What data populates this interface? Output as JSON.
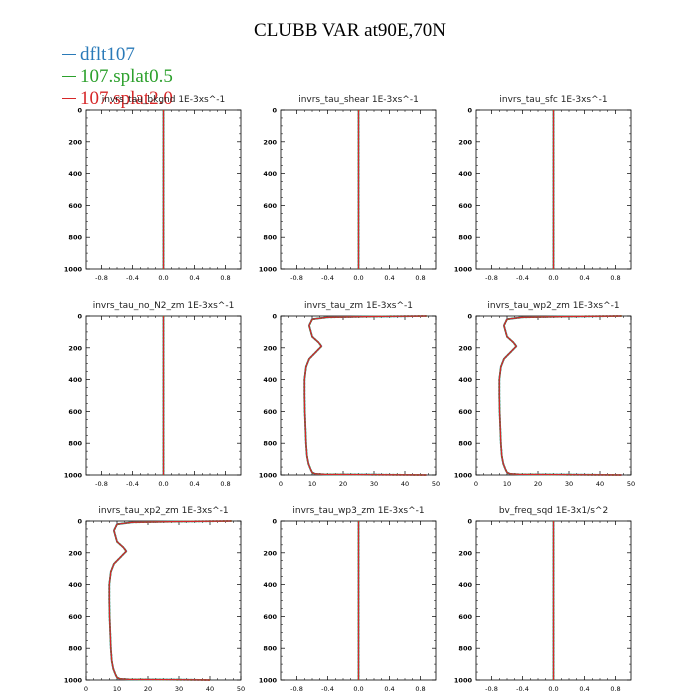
{
  "title": "CLUBB VAR at90E,70N",
  "legend": [
    {
      "label": "dflt107",
      "color": "#2a7ab8"
    },
    {
      "label": "107.splat0.5",
      "color": "#2ca02c"
    },
    {
      "label": "107.splat2.0",
      "color": "#d62728"
    }
  ],
  "chart_data": [
    {
      "type": "line",
      "title": "invrs_tau_bkgnd   1E-3xs^-1",
      "xlim": [
        -1,
        1
      ],
      "xticks": [
        "-0.8",
        "-0.4",
        "0.0",
        "0.4",
        "0.8"
      ],
      "ylim": [
        0,
        1000
      ],
      "yticks": [
        "0",
        "200",
        "400",
        "600",
        "800",
        "1000"
      ],
      "x": [
        0,
        0
      ],
      "y": [
        0,
        1000
      ]
    },
    {
      "type": "line",
      "title": "invrs_tau_shear   1E-3xs^-1",
      "xlim": [
        -1,
        1
      ],
      "xticks": [
        "-0.8",
        "-0.4",
        "0.0",
        "0.4",
        "0.8"
      ],
      "ylim": [
        0,
        1000
      ],
      "yticks": [
        "0",
        "200",
        "400",
        "600",
        "800",
        "1000"
      ],
      "x": [
        0,
        0
      ],
      "y": [
        0,
        1000
      ]
    },
    {
      "type": "line",
      "title": "invrs_tau_sfc   1E-3xs^-1",
      "xlim": [
        -1,
        1
      ],
      "xticks": [
        "-0.8",
        "-0.4",
        "0.0",
        "0.4",
        "0.8"
      ],
      "ylim": [
        0,
        1000
      ],
      "yticks": [
        "0",
        "200",
        "400",
        "600",
        "800",
        "1000"
      ],
      "x": [
        0,
        0
      ],
      "y": [
        0,
        1000
      ]
    },
    {
      "type": "line",
      "title": "invrs_tau_no_N2_zm   1E-3xs^-1",
      "xlim": [
        -1,
        1
      ],
      "xticks": [
        "-0.8",
        "-0.4",
        "0.0",
        "0.4",
        "0.8"
      ],
      "ylim": [
        0,
        1000
      ],
      "yticks": [
        "0",
        "200",
        "400",
        "600",
        "800",
        "1000"
      ],
      "x": [
        0,
        0
      ],
      "y": [
        0,
        1000
      ]
    },
    {
      "type": "line",
      "title": "invrs_tau_zm   1E-3xs^-1",
      "xlim": [
        0,
        50
      ],
      "xticks": [
        "0",
        "10",
        "20",
        "30",
        "40",
        "50"
      ],
      "ylim": [
        0,
        1000
      ],
      "yticks": [
        "0",
        "200",
        "400",
        "600",
        "800",
        "1000"
      ],
      "x": [
        47,
        30,
        15,
        10,
        9,
        10,
        12,
        13,
        11,
        9,
        8,
        7.5,
        7.5,
        7.6,
        7.8,
        8.0,
        8.3,
        8.8,
        9.5,
        10,
        11,
        14,
        30,
        47
      ],
      "y": [
        0,
        3,
        8,
        20,
        60,
        130,
        165,
        190,
        230,
        270,
        320,
        400,
        500,
        600,
        700,
        800,
        880,
        930,
        965,
        985,
        993,
        996,
        998,
        1000
      ]
    },
    {
      "type": "line",
      "title": "invrs_tau_wp2_zm   1E-3xs^-1",
      "xlim": [
        0,
        50
      ],
      "xticks": [
        "0",
        "10",
        "20",
        "30",
        "40",
        "50"
      ],
      "ylim": [
        0,
        1000
      ],
      "yticks": [
        "0",
        "200",
        "400",
        "600",
        "800",
        "1000"
      ],
      "x": [
        47,
        30,
        15,
        10,
        9,
        10,
        12,
        13,
        11,
        9,
        8,
        7.5,
        7.5,
        7.6,
        7.8,
        8.0,
        8.3,
        8.8,
        9.5,
        10,
        11,
        14,
        30,
        47
      ],
      "y": [
        0,
        3,
        8,
        20,
        60,
        130,
        165,
        190,
        230,
        270,
        320,
        400,
        500,
        600,
        700,
        800,
        880,
        930,
        965,
        985,
        993,
        996,
        998,
        1000
      ]
    },
    {
      "type": "line",
      "title": "invrs_tau_xp2_zm   1E-3xs^-1",
      "xlim": [
        0,
        50
      ],
      "xticks": [
        "0",
        "10",
        "20",
        "30",
        "40",
        "50"
      ],
      "ylim": [
        0,
        1000
      ],
      "yticks": [
        "0",
        "200",
        "400",
        "600",
        "800",
        "1000"
      ],
      "x": [
        47,
        30,
        15,
        10,
        9,
        10,
        12,
        13,
        11,
        9,
        8,
        7.5,
        7.5,
        7.6,
        7.8,
        8.0,
        8.3,
        8.8,
        9.5,
        10,
        11,
        14,
        30,
        40
      ],
      "y": [
        0,
        3,
        8,
        20,
        60,
        130,
        165,
        190,
        230,
        270,
        320,
        400,
        500,
        600,
        700,
        800,
        880,
        930,
        965,
        985,
        993,
        996,
        998,
        1000
      ]
    },
    {
      "type": "line",
      "title": "invrs_tau_wp3_zm   1E-3xs^-1",
      "xlim": [
        -1,
        1
      ],
      "xticks": [
        "-0.8",
        "-0.4",
        "0.0",
        "0.4",
        "0.8"
      ],
      "ylim": [
        0,
        1000
      ],
      "yticks": [
        "0",
        "200",
        "400",
        "600",
        "800",
        "1000"
      ],
      "x": [
        0,
        0
      ],
      "y": [
        0,
        1000
      ]
    },
    {
      "type": "line",
      "title": "bv_freq_sqd   1E-3x1/s^2",
      "xlim": [
        -1,
        1
      ],
      "xticks": [
        "-0.8",
        "-0.4",
        "0.0",
        "0.4",
        "0.8"
      ],
      "ylim": [
        0,
        1000
      ],
      "yticks": [
        "0",
        "200",
        "400",
        "600",
        "800",
        "1000"
      ],
      "x": [
        0,
        0
      ],
      "y": [
        0,
        1000
      ]
    }
  ]
}
